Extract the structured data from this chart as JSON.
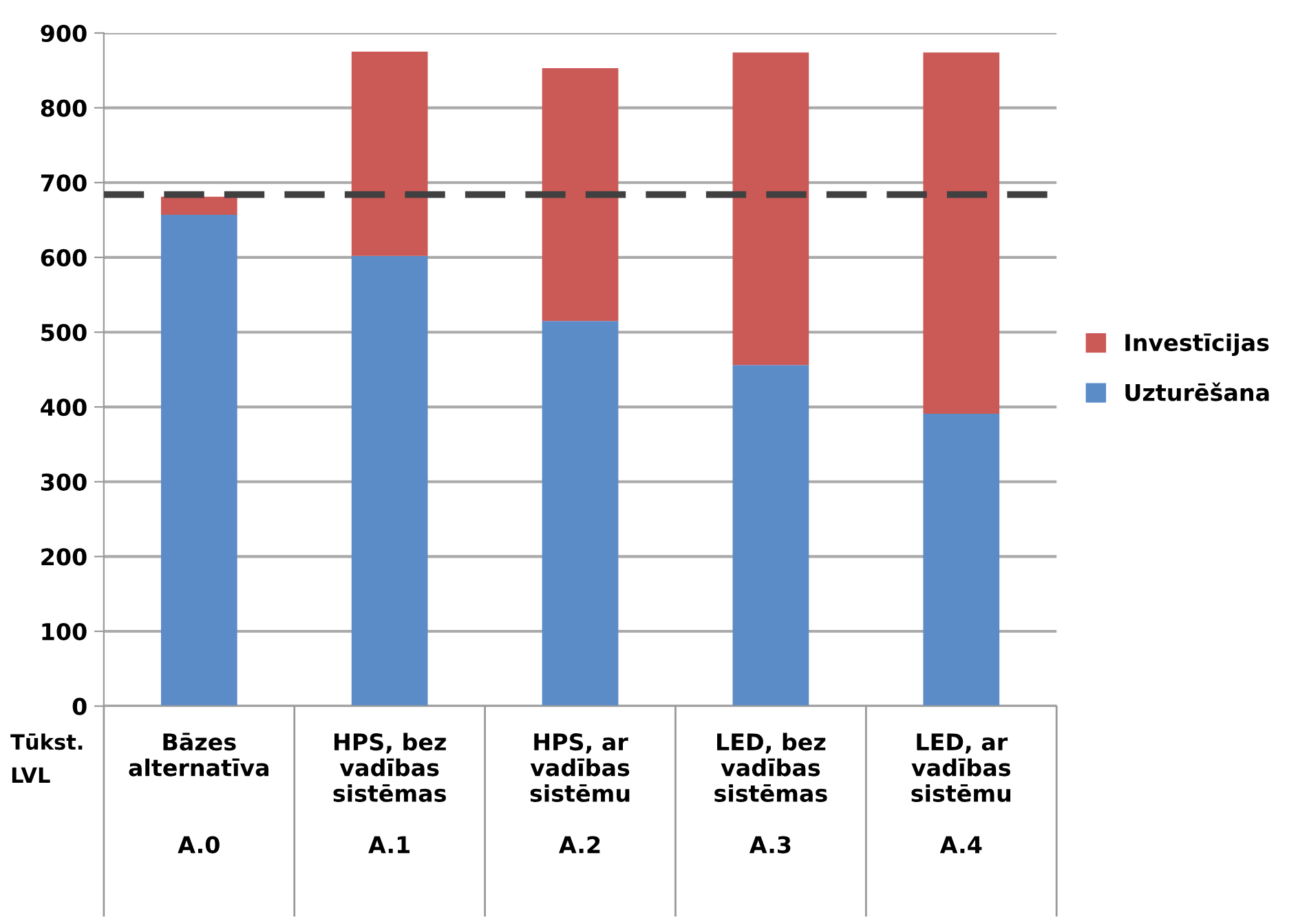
{
  "chart_data": {
    "type": "bar",
    "stacked": true,
    "ylabel": "Tūkst.\nLVL",
    "categories": [
      "Bāzes\nalternatīva\n\n\nA.0",
      "HPS, bez\nvadības\nsistēmas\n\nA.1",
      "HPS, ar\nvadības\nsistēmu\n\nA.2",
      "LED, bez\nvadības\nsistēmas\n\nA.3",
      "LED, ar\nvadības\nsistēmu\n\nA.4"
    ],
    "series": [
      {
        "name": "Uzturēšana",
        "color": "#5b8cc8",
        "values": [
          657,
          602,
          515,
          456,
          391
        ]
      },
      {
        "name": "Investīcijas",
        "color": "#cb5a57",
        "values": [
          24,
          273,
          338,
          418,
          483
        ]
      }
    ],
    "ylim": [
      0,
      900
    ],
    "yticks": [
      0,
      100,
      200,
      300,
      400,
      500,
      600,
      700,
      800,
      900
    ],
    "ref_lines": [
      {
        "axis": "y",
        "value": 684,
        "color": "#404040",
        "line_style": "dashed"
      }
    ],
    "grid": "y",
    "legend": "right"
  }
}
